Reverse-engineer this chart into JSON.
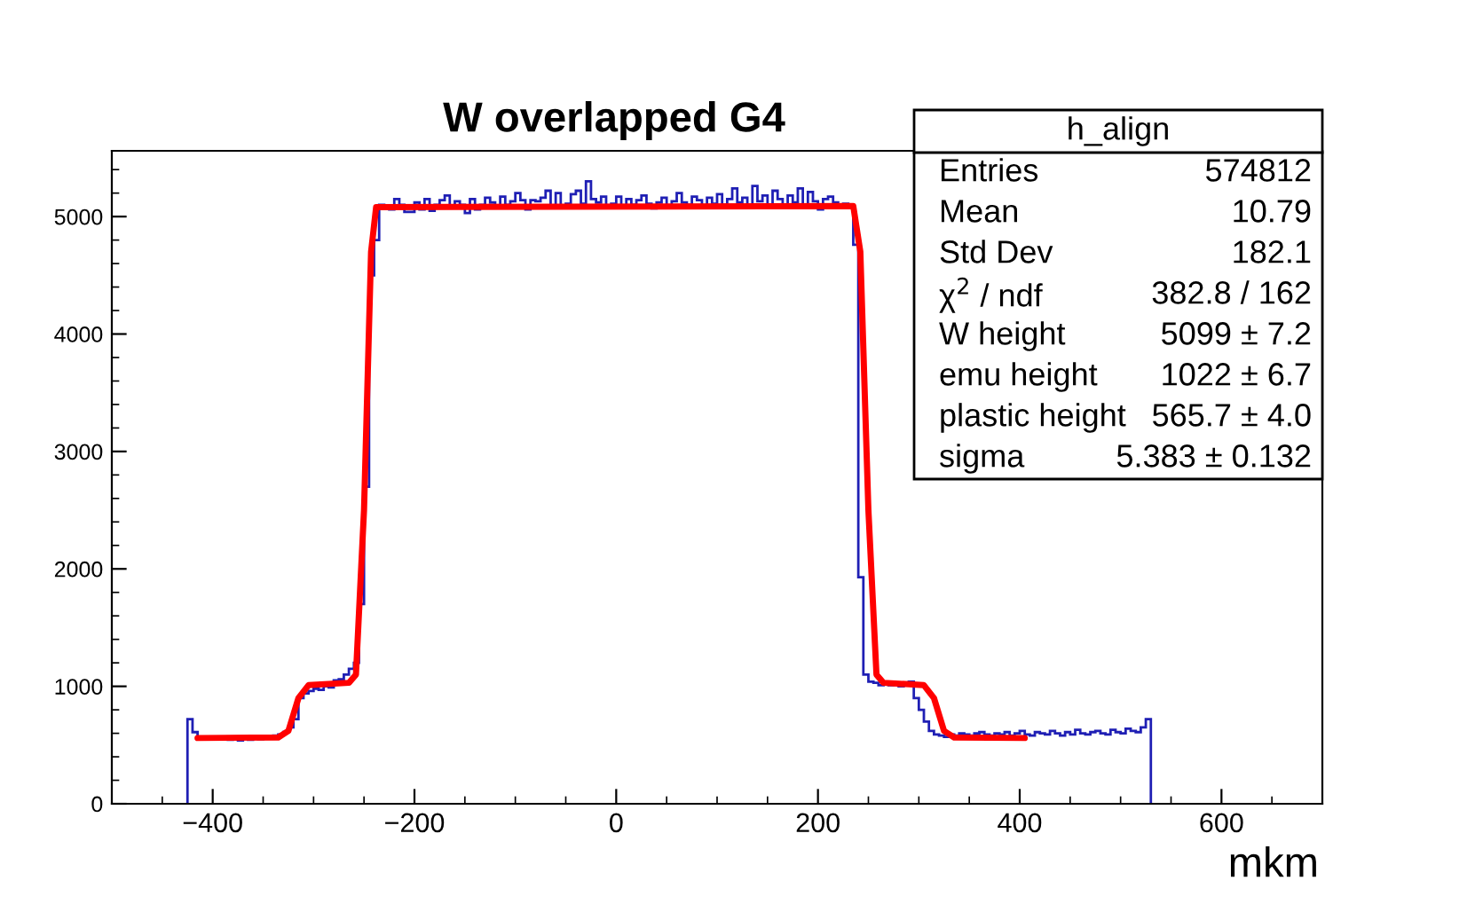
{
  "chart_data": {
    "type": "histogram",
    "title": "W overlapped G4",
    "xlabel": "mkm",
    "xlim": [
      -500,
      700
    ],
    "xticks": [
      {
        "value": -400,
        "label": "−400"
      },
      {
        "value": -200,
        "label": "−200"
      },
      0,
      200,
      400,
      600
    ],
    "ylim": [
      0,
      5560
    ],
    "yticks": [
      0,
      1000,
      2000,
      3000,
      4000,
      5000
    ],
    "color": "#1f1fb4",
    "grid": false,
    "legend": false,
    "bins": [
      -425,
      -420,
      -415,
      -410,
      -405,
      -400,
      -395,
      -390,
      -385,
      -380,
      -375,
      -370,
      -365,
      -360,
      -355,
      -350,
      -345,
      -340,
      -335,
      -330,
      -325,
      -320,
      -315,
      -310,
      -305,
      -300,
      -295,
      -290,
      -285,
      -280,
      -275,
      -270,
      -265,
      -260,
      -255,
      -250,
      -245,
      -240,
      -235,
      -230,
      -225,
      -220,
      -215,
      -210,
      -205,
      -200,
      -195,
      -190,
      -185,
      -180,
      -175,
      -170,
      -165,
      -160,
      -155,
      -150,
      -145,
      -140,
      -135,
      -130,
      -125,
      -120,
      -115,
      -110,
      -105,
      -100,
      -95,
      -90,
      -85,
      -80,
      -75,
      -70,
      -65,
      -60,
      -55,
      -50,
      -45,
      -40,
      -35,
      -30,
      -25,
      -20,
      -15,
      -10,
      -5,
      0,
      5,
      10,
      15,
      20,
      25,
      30,
      35,
      40,
      45,
      50,
      55,
      60,
      65,
      70,
      75,
      80,
      85,
      90,
      95,
      100,
      105,
      110,
      115,
      120,
      125,
      130,
      135,
      140,
      145,
      150,
      155,
      160,
      165,
      170,
      175,
      180,
      185,
      190,
      195,
      200,
      205,
      210,
      215,
      220,
      225,
      230,
      235,
      240,
      245,
      250,
      255,
      260,
      265,
      270,
      275,
      280,
      285,
      290,
      295,
      300,
      305,
      310,
      315,
      320,
      325,
      330,
      335,
      340,
      345,
      350,
      355,
      360,
      365,
      370,
      375,
      380,
      385,
      390,
      395,
      400,
      405,
      410,
      415,
      420,
      425,
      430,
      435,
      440,
      445,
      450,
      455,
      460,
      465,
      470,
      475,
      480,
      485,
      490,
      495,
      500,
      505,
      510,
      515,
      520,
      525,
      530
    ],
    "values": [
      720,
      610,
      560,
      555,
      560,
      550,
      565,
      560,
      545,
      550,
      540,
      555,
      545,
      560,
      550,
      565,
      570,
      580,
      590,
      610,
      650,
      720,
      900,
      940,
      960,
      980,
      970,
      1000,
      990,
      1050,
      1060,
      1100,
      1150,
      1200,
      1700,
      2700,
      4500,
      4800,
      5100,
      5080,
      5060,
      5150,
      5100,
      5040,
      5040,
      5120,
      5060,
      5150,
      5050,
      5100,
      5140,
      5180,
      5090,
      5130,
      5100,
      5030,
      5150,
      5060,
      5100,
      5160,
      5120,
      5090,
      5170,
      5100,
      5130,
      5200,
      5140,
      5060,
      5140,
      5130,
      5160,
      5220,
      5080,
      5200,
      5080,
      5110,
      5190,
      5220,
      5110,
      5300,
      5150,
      5120,
      5170,
      5080,
      5110,
      5170,
      5090,
      5150,
      5100,
      5140,
      5180,
      5110,
      5070,
      5120,
      5160,
      5090,
      5130,
      5200,
      5120,
      5100,
      5170,
      5140,
      5080,
      5160,
      5110,
      5190,
      5100,
      5150,
      5240,
      5120,
      5160,
      5090,
      5260,
      5130,
      5180,
      5100,
      5220,
      5150,
      5100,
      5180,
      5120,
      5240,
      5090,
      5210,
      5130,
      5060,
      5150,
      5170,
      5120,
      5090,
      5110,
      5100,
      4760,
      1930,
      1100,
      1040,
      1030,
      1010,
      1020,
      1010,
      1030,
      1000,
      1020,
      1040,
      900,
      800,
      700,
      620,
      590,
      580,
      570,
      590,
      580,
      600,
      590,
      580,
      600,
      610,
      590,
      580,
      600,
      590,
      610,
      580,
      600,
      620,
      590,
      580,
      610,
      600,
      590,
      620,
      600,
      580,
      610,
      590,
      630,
      600,
      590,
      610,
      620,
      600,
      590,
      630,
      610,
      600,
      640,
      620,
      610,
      650,
      720
    ],
    "series": [
      {
        "type": "line",
        "color": "#ff0000",
        "x": [
          -415,
          -335,
          -325,
          -315,
          -305,
          -265,
          -258,
          -250,
          -243,
          -238,
          235,
          242,
          250,
          258,
          265,
          305,
          315,
          325,
          335,
          405
        ],
        "values": [
          560,
          565,
          620,
          900,
          1010,
          1030,
          1100,
          2500,
          4700,
          5080,
          5090,
          4700,
          2500,
          1100,
          1030,
          1010,
          900,
          620,
          565,
          560
        ]
      }
    ],
    "annotations": [
      "h_align",
      "Entries",
      "574812",
      "Mean",
      "10.79",
      "Std Dev",
      "182.1",
      "χ$^{2}$ / ndf",
      "382.8 / 162",
      "W height",
      "5099 ± 7.2",
      "emu height",
      "1022 ± 6.7",
      "plastic height",
      "565.7 ± 4.0",
      "sigma",
      "5.383 ± 0.132"
    ]
  }
}
